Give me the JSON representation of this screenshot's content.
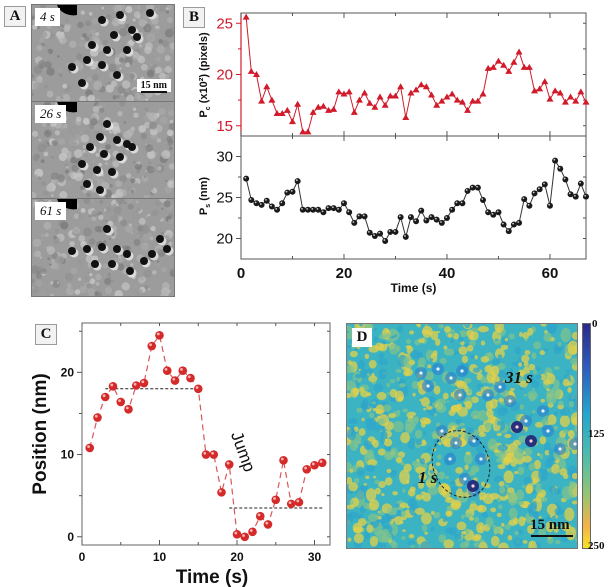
{
  "panels": {
    "A": {
      "label": "A",
      "frames": [
        {
          "time_label": "4 s"
        },
        {
          "time_label": "26 s"
        },
        {
          "time_label": "61 s"
        }
      ],
      "scale_bar": "15 nm"
    },
    "B": {
      "label": "B"
    },
    "C": {
      "label": "C",
      "annotation": "Jump"
    },
    "D": {
      "label": "D",
      "annotations": [
        "31 s",
        "1 s"
      ],
      "scale_bar": "15 nm",
      "colorbar": {
        "ticks": [
          "0",
          "125",
          "250"
        ],
        "colors": [
          "#2a2f8f",
          "#2aa7c8",
          "#5fbf9a",
          "#f6d13a"
        ]
      }
    }
  },
  "chart_data": [
    {
      "id": "B-top",
      "type": "line",
      "title": "",
      "xlabel": "Time (s)",
      "ylabel": "Pc (x10²) (pixels)",
      "ylabel_main": "P",
      "ylabel_sub": "c",
      "ylabel_rest": " (x10²) (pixels)",
      "xlim": [
        0,
        67
      ],
      "ylim": [
        14,
        26
      ],
      "yticks": [
        15,
        20,
        25
      ],
      "color": "#d11a2a",
      "marker": "triangle",
      "x": [
        1,
        2,
        3,
        4,
        5,
        6,
        7,
        8,
        9,
        10,
        11,
        12,
        13,
        14,
        15,
        16,
        17,
        18,
        19,
        20,
        21,
        22,
        23,
        24,
        25,
        26,
        27,
        28,
        29,
        30,
        31,
        32,
        33,
        34,
        35,
        36,
        37,
        38,
        39,
        40,
        41,
        42,
        43,
        44,
        45,
        46,
        47,
        48,
        49,
        50,
        51,
        52,
        53,
        54,
        55,
        56,
        57,
        58,
        59,
        60,
        61,
        62,
        63,
        64,
        65,
        66,
        67
      ],
      "y": [
        25.6,
        20.3,
        20.0,
        17.4,
        18.8,
        17.5,
        16.2,
        16.2,
        16.5,
        15.4,
        17.1,
        14.4,
        14.4,
        16.3,
        16.8,
        16.9,
        16.5,
        16.6,
        18.3,
        18.1,
        18.3,
        16.3,
        17.5,
        18.2,
        17.2,
        16.8,
        17.8,
        17.0,
        17.9,
        17.9,
        18.8,
        15.8,
        18.2,
        18.5,
        19.0,
        18.8,
        18.0,
        17.0,
        17.4,
        17.8,
        18.1,
        17.5,
        17.3,
        16.5,
        17.4,
        17.4,
        18.1,
        20.6,
        20.7,
        21.3,
        20.9,
        20.3,
        21.2,
        22.2,
        20.7,
        20.7,
        18.4,
        18.6,
        19.3,
        17.6,
        18.4,
        18.2,
        17.3,
        17.8,
        17.4,
        18.3,
        17.3
      ]
    },
    {
      "id": "B-bottom",
      "type": "line",
      "xlabel": "Time (s)",
      "ylabel": "Ps (nm)",
      "ylabel_main": "P",
      "ylabel_sub": "s",
      "ylabel_rest": " (nm)",
      "xlim": [
        0,
        67
      ],
      "ylim": [
        17.5,
        32.5
      ],
      "yticks": [
        20,
        25,
        30
      ],
      "xticks": [
        0,
        20,
        40,
        60
      ],
      "color": "#222222",
      "marker": "circle",
      "x": [
        1,
        2,
        3,
        4,
        5,
        6,
        7,
        8,
        9,
        10,
        11,
        12,
        13,
        14,
        15,
        16,
        17,
        18,
        19,
        20,
        21,
        22,
        23,
        24,
        25,
        26,
        27,
        28,
        29,
        30,
        31,
        32,
        33,
        34,
        35,
        36,
        37,
        38,
        39,
        40,
        41,
        42,
        43,
        44,
        45,
        46,
        47,
        48,
        49,
        50,
        51,
        52,
        53,
        54,
        55,
        56,
        57,
        58,
        59,
        60,
        61,
        62,
        63,
        64,
        65,
        66,
        67
      ],
      "y": [
        27.3,
        24.7,
        24.3,
        24.1,
        24.6,
        23.9,
        23.5,
        24.3,
        25.6,
        25.7,
        27.0,
        23.5,
        23.5,
        23.5,
        23.5,
        23.2,
        23.7,
        23.7,
        23.5,
        24.3,
        23.2,
        21.9,
        22.7,
        22.7,
        20.7,
        20.3,
        20.6,
        19.7,
        20.8,
        20.8,
        22.6,
        20.2,
        22.6,
        22.1,
        23.4,
        22.2,
        22.6,
        22.3,
        21.9,
        22.5,
        23.5,
        24.3,
        24.3,
        25.8,
        26.2,
        26.2,
        24.7,
        23.2,
        22.9,
        23.2,
        21.7,
        20.9,
        21.7,
        21.9,
        24.8,
        24.0,
        25.5,
        26.0,
        26.6,
        24.0,
        29.5,
        28.5,
        27.2,
        25.4,
        25.1,
        26.7,
        25.1
      ]
    },
    {
      "id": "C",
      "type": "scatter",
      "xlabel": "Time (s)",
      "ylabel": "Position (nm)",
      "xlim": [
        0,
        32
      ],
      "ylim": [
        -1,
        26
      ],
      "xticks": [
        0,
        10,
        20,
        30
      ],
      "yticks": [
        0,
        10,
        20
      ],
      "color": "#d42a2a",
      "line_style": "dashed",
      "x": [
        1,
        2,
        3,
        4,
        5,
        6,
        7,
        8,
        9,
        10,
        11,
        12,
        13,
        14,
        15,
        16,
        17,
        18,
        19,
        20,
        21,
        22,
        23,
        24,
        25,
        26,
        27,
        28,
        29,
        30,
        31
      ],
      "y": [
        10.8,
        14.5,
        17.0,
        18.3,
        16.4,
        15.5,
        18.4,
        18.7,
        23.2,
        24.5,
        20.2,
        19.0,
        20.2,
        19.3,
        18.0,
        10.0,
        10.0,
        5.4,
        8.8,
        0.3,
        0.0,
        0.6,
        2.5,
        1.5,
        4.5,
        9.3,
        4.0,
        4.2,
        8.2,
        8.7,
        9.0
      ],
      "reference_lines": [
        {
          "y": 18.0,
          "x_range": [
            3,
            15.5
          ],
          "style": "dotted"
        },
        {
          "y": 3.5,
          "x_range": [
            19,
            31
          ],
          "style": "dotted"
        }
      ]
    }
  ]
}
